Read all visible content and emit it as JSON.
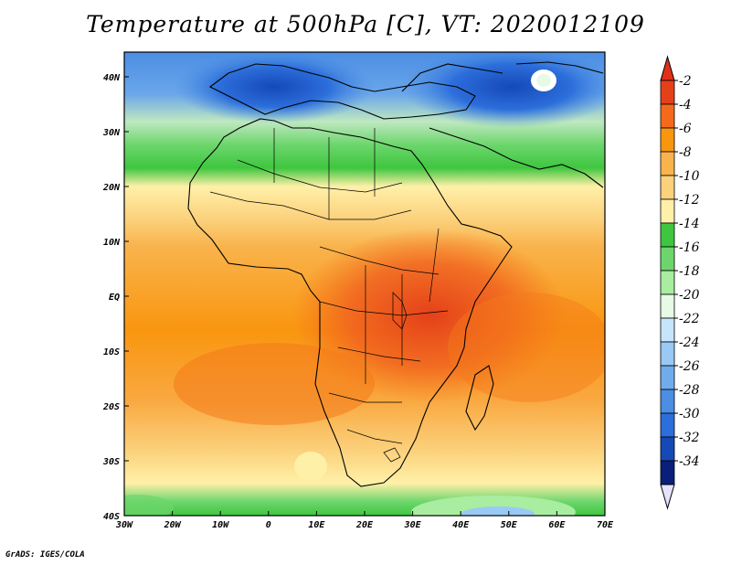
{
  "title": "Temperature at 500hPa [C], VT: 2020012109",
  "footer": "GrADS: IGES/COLA",
  "map": {
    "lon_ticks": [
      "30W",
      "20W",
      "10W",
      "0",
      "10E",
      "20E",
      "30E",
      "40E",
      "50E",
      "60E",
      "70E"
    ],
    "lat_ticks": [
      "40N",
      "30N",
      "20N",
      "10N",
      "EQ",
      "10S",
      "20S",
      "30S",
      "40S"
    ]
  },
  "colorbar": {
    "labels": [
      "-2",
      "-4",
      "-6",
      "-8",
      "-10",
      "-12",
      "-14",
      "-16",
      "-18",
      "-20",
      "-22",
      "-24",
      "-26",
      "-28",
      "-30",
      "-32",
      "-34"
    ],
    "colors": [
      "#e4401a",
      "#f46a1a",
      "#f9960f",
      "#f9b34c",
      "#fbd17c",
      "#fff0a8",
      "#3fc63f",
      "#6cd66c",
      "#a8eda0",
      "#e6fae6",
      "#c6e4fb",
      "#99c9f5",
      "#70acec",
      "#4b8ee3",
      "#2c6edb",
      "#1549b8",
      "#0a1f7a"
    ],
    "top_arrow_color": "#e0301a",
    "bottom_arrow_color": "#e6e2ff"
  }
}
